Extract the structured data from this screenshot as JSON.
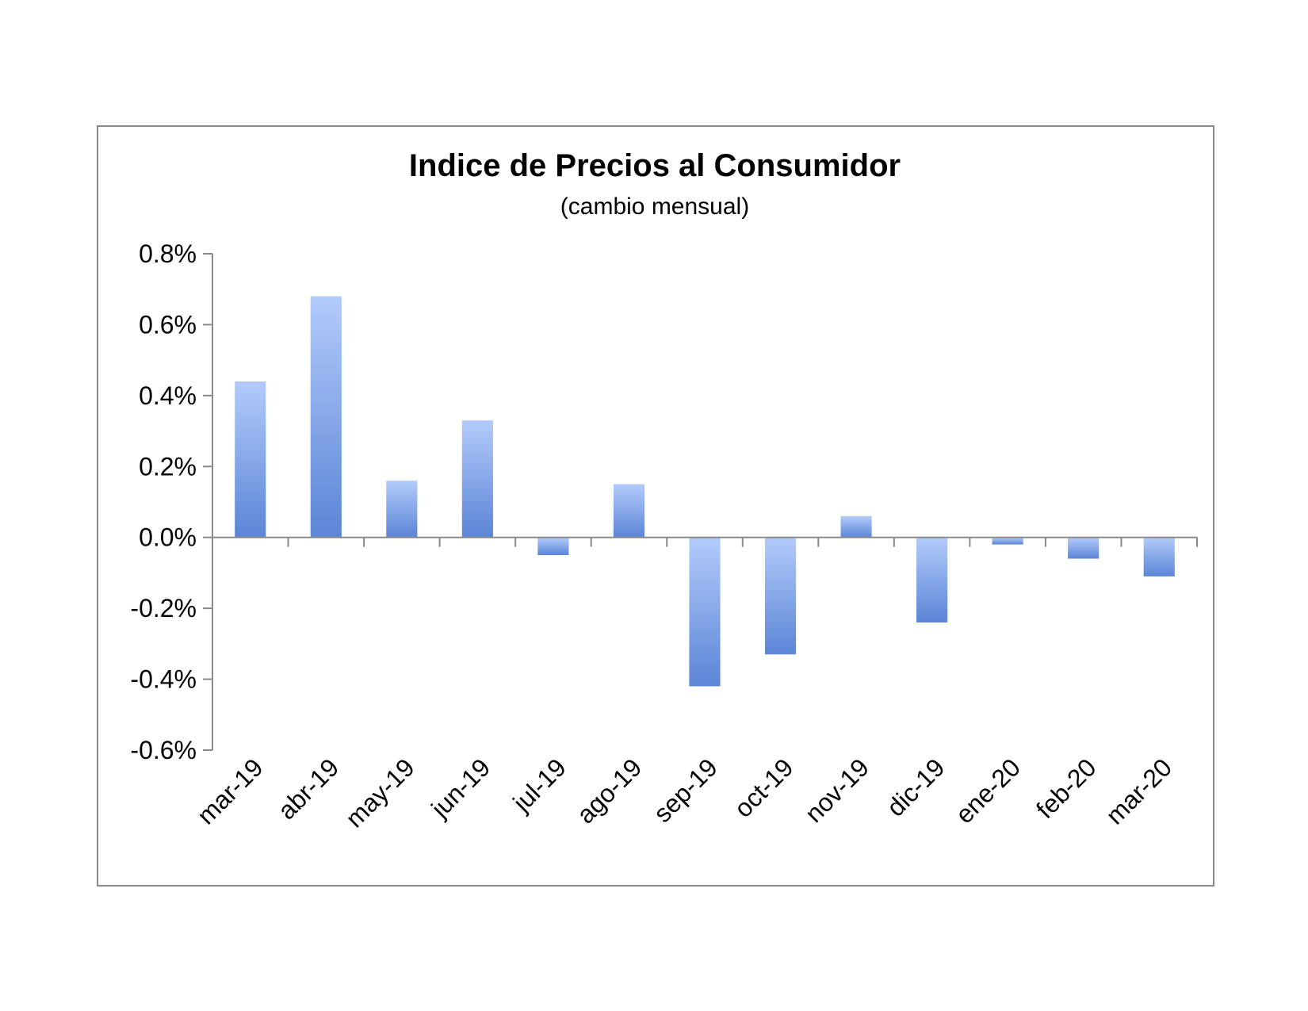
{
  "chart_data": {
    "type": "bar",
    "title": "Indice de Precios al Consumidor",
    "subtitle": "(cambio mensual)",
    "categories": [
      "mar-19",
      "abr-19",
      "may-19",
      "jun-19",
      "jul-19",
      "ago-19",
      "sep-19",
      "oct-19",
      "nov-19",
      "dic-19",
      "ene-20",
      "feb-20",
      "mar-20"
    ],
    "values": [
      0.44,
      0.68,
      0.16,
      0.33,
      -0.05,
      0.15,
      -0.42,
      -0.33,
      0.06,
      -0.24,
      -0.02,
      -0.06,
      -0.11
    ],
    "ylim": [
      -0.6,
      0.8
    ],
    "yticks": [
      0.8,
      0.6,
      0.4,
      0.2,
      0.0,
      -0.2,
      -0.4,
      -0.6
    ],
    "ytick_labels": [
      "0.8%",
      "0.6%",
      "0.4%",
      "0.2%",
      "0.0%",
      "-0.2%",
      "-0.4%",
      "-0.6%"
    ],
    "grid": false,
    "colors": {
      "bar_light": "#b3cbfb",
      "bar_dark": "#5b85d6",
      "axis": "#8a8a8a"
    }
  }
}
